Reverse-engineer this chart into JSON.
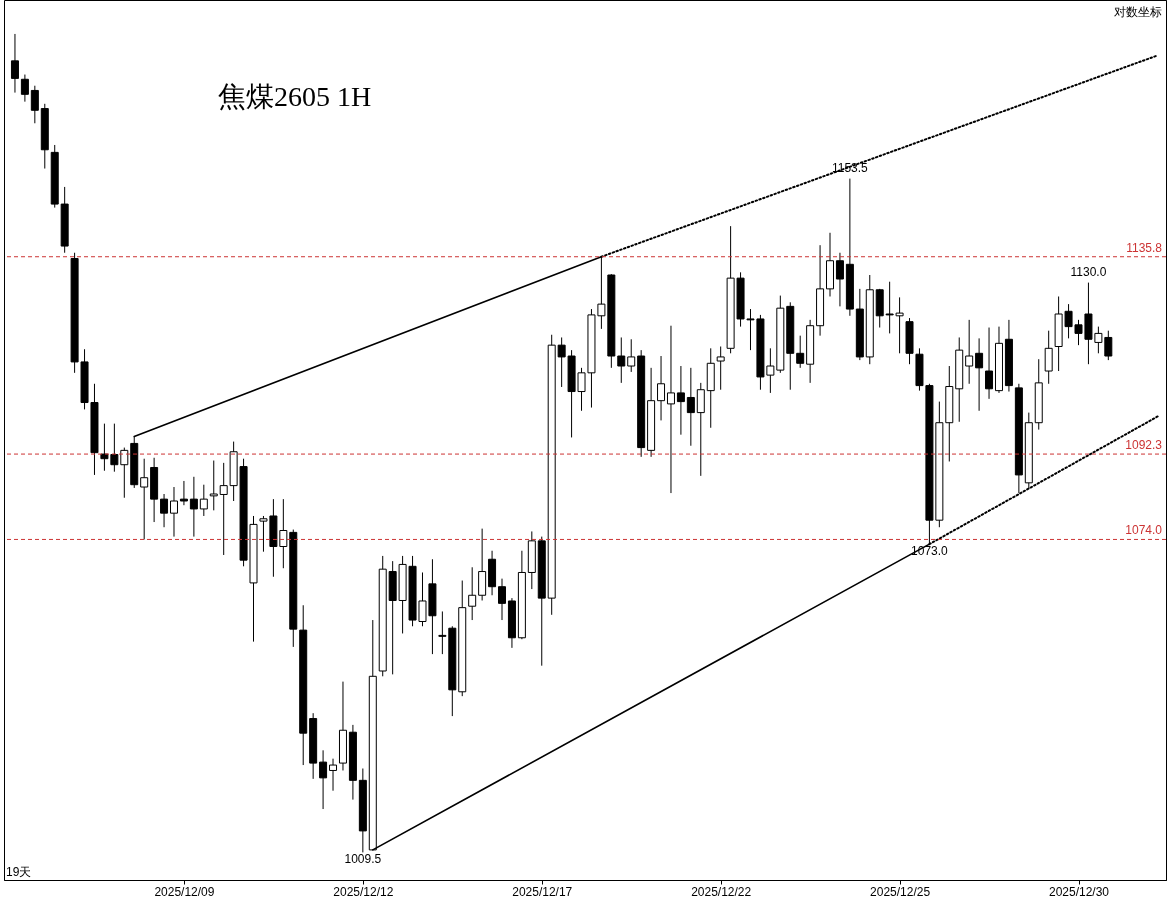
{
  "chart_data": {
    "type": "candlestick",
    "title": "焦煤2605 1H",
    "color": "#000000",
    "log": true,
    "grid": false,
    "tick_labels": "x",
    "ylim": [
      1004,
      1195
    ],
    "categories": [
      null,
      null,
      null,
      null,
      null,
      null,
      null,
      null,
      null,
      null,
      null,
      null,
      null,
      null,
      null,
      null,
      null,
      "2025/12/09",
      null,
      null,
      null,
      null,
      null,
      null,
      null,
      null,
      null,
      null,
      null,
      null,
      null,
      null,
      null,
      null,
      null,
      "2025/12/12",
      null,
      null,
      null,
      null,
      null,
      null,
      null,
      null,
      null,
      null,
      null,
      null,
      null,
      null,
      null,
      null,
      null,
      "2025/12/17",
      null,
      null,
      null,
      null,
      null,
      null,
      null,
      null,
      null,
      null,
      null,
      null,
      null,
      null,
      null,
      null,
      null,
      "2025/12/22",
      null,
      null,
      null,
      null,
      null,
      null,
      null,
      null,
      null,
      null,
      null,
      null,
      null,
      null,
      null,
      null,
      null,
      "2025/12/25",
      null,
      null,
      null,
      null,
      null,
      null,
      null,
      null,
      null,
      null,
      null,
      null,
      null,
      null,
      null,
      null,
      null,
      "2025/12/30",
      null,
      null,
      null,
      null,
      null,
      null,
      null,
      null
    ],
    "ohlc": [
      [
        1180.7,
        1187.0,
        1173.3,
        1176.6
      ],
      [
        1176.4,
        1177.5,
        1171.2,
        1172.9
      ],
      [
        1173.8,
        1174.9,
        1166.2,
        1169.2
      ],
      [
        1169.6,
        1170.7,
        1155.8,
        1160.1
      ],
      [
        1159.5,
        1161.2,
        1146.9,
        1147.7
      ],
      [
        1147.7,
        1151.6,
        1136.7,
        1138.2
      ],
      [
        1135.4,
        1136.7,
        1110.0,
        1112.4
      ],
      [
        1112.4,
        1115.2,
        1102.0,
        1103.5
      ],
      [
        1103.5,
        1107.6,
        1087.8,
        1092.6
      ],
      [
        1092.3,
        1098.9,
        1088.7,
        1091.3
      ],
      [
        1092.2,
        1098.9,
        1088.5,
        1090.0
      ],
      [
        1090.0,
        1093.7,
        1082.9,
        1093.1
      ],
      [
        1094.6,
        1096.1,
        1085.0,
        1085.7
      ],
      [
        1085.2,
        1091.3,
        1074.0,
        1087.2
      ],
      [
        1089.4,
        1091.5,
        1077.7,
        1082.6
      ],
      [
        1082.6,
        1083.7,
        1076.6,
        1079.6
      ],
      [
        1079.6,
        1085.2,
        1074.6,
        1082.2
      ],
      [
        1082.6,
        1086.5,
        1081.3,
        1082.2
      ],
      [
        1082.6,
        1087.4,
        1074.6,
        1080.5
      ],
      [
        1080.5,
        1085.7,
        1079.0,
        1082.6
      ],
      [
        1083.3,
        1090.9,
        1080.2,
        1083.7
      ],
      [
        1083.6,
        1090.4,
        1070.7,
        1085.5
      ],
      [
        1085.5,
        1095.0,
        1082.2,
        1092.8
      ],
      [
        1089.6,
        1091.3,
        1068.3,
        1069.6
      ],
      [
        1064.8,
        1079.0,
        1052.5,
        1077.2
      ],
      [
        1077.9,
        1079.0,
        1071.4,
        1078.4
      ],
      [
        1079.0,
        1082.6,
        1066.1,
        1072.5
      ],
      [
        1072.5,
        1082.6,
        1067.9,
        1075.9
      ],
      [
        1075.5,
        1076.1,
        1051.4,
        1055.1
      ],
      [
        1054.9,
        1060.1,
        1027.1,
        1033.6
      ],
      [
        1036.6,
        1037.7,
        1024.3,
        1027.5
      ],
      [
        1027.7,
        1030.1,
        1018.2,
        1024.5
      ],
      [
        1026.0,
        1028.4,
        1021.9,
        1027.1
      ],
      [
        1027.5,
        1044.2,
        1026.0,
        1034.2
      ],
      [
        1033.8,
        1035.3,
        1020.1,
        1024.0
      ],
      [
        1024.0,
        1026.4,
        1009.5,
        1013.8
      ],
      [
        1010.0,
        1057.0,
        1010.0,
        1045.3
      ],
      [
        1046.4,
        1070.5,
        1045.3,
        1067.7
      ],
      [
        1067.2,
        1069.4,
        1045.7,
        1061.1
      ],
      [
        1061.1,
        1070.5,
        1054.2,
        1068.7
      ],
      [
        1068.3,
        1070.5,
        1055.7,
        1057.0
      ],
      [
        1056.7,
        1067.0,
        1055.7,
        1061.0
      ],
      [
        1064.6,
        1069.8,
        1049.9,
        1057.9
      ],
      [
        1053.8,
        1058.8,
        1049.9,
        1053.6
      ],
      [
        1055.3,
        1055.7,
        1037.1,
        1042.5
      ],
      [
        1042.1,
        1065.3,
        1041.2,
        1059.6
      ],
      [
        1059.9,
        1068.1,
        1057.0,
        1062.2
      ],
      [
        1062.2,
        1076.3,
        1061.1,
        1067.2
      ],
      [
        1069.8,
        1071.6,
        1062.2,
        1064.0
      ],
      [
        1064.0,
        1065.7,
        1057.0,
        1060.5
      ],
      [
        1061.0,
        1061.6,
        1051.2,
        1053.3
      ],
      [
        1053.3,
        1071.6,
        1053.0,
        1067.0
      ],
      [
        1067.0,
        1075.7,
        1063.5,
        1073.7
      ],
      [
        1073.7,
        1074.6,
        1047.5,
        1061.6
      ],
      [
        1061.6,
        1118.4,
        1058.1,
        1116.1
      ],
      [
        1116.1,
        1117.8,
        1106.9,
        1113.5
      ],
      [
        1113.7,
        1115.0,
        1095.9,
        1105.9
      ],
      [
        1105.9,
        1111.1,
        1101.7,
        1110.0
      ],
      [
        1110.0,
        1124.1,
        1102.4,
        1122.8
      ],
      [
        1122.6,
        1135.8,
        1119.7,
        1125.2
      ],
      [
        1131.7,
        1131.9,
        1111.1,
        1113.7
      ],
      [
        1113.7,
        1117.8,
        1107.8,
        1111.5
      ],
      [
        1111.5,
        1117.4,
        1110.2,
        1113.5
      ],
      [
        1113.7,
        1115.0,
        1091.7,
        1093.7
      ],
      [
        1093.1,
        1111.1,
        1091.7,
        1103.9
      ],
      [
        1103.9,
        1113.7,
        1099.6,
        1107.6
      ],
      [
        1103.2,
        1120.4,
        1083.9,
        1105.6
      ],
      [
        1105.6,
        1111.5,
        1096.5,
        1103.7
      ],
      [
        1104.6,
        1111.1,
        1094.1,
        1101.3
      ],
      [
        1101.3,
        1107.8,
        1087.6,
        1106.3
      ],
      [
        1106.1,
        1115.4,
        1098.0,
        1112.1
      ],
      [
        1112.6,
        1115.8,
        1106.3,
        1113.5
      ],
      [
        1115.4,
        1142.7,
        1114.3,
        1131.0
      ],
      [
        1131.0,
        1132.3,
        1120.2,
        1121.9
      ],
      [
        1121.9,
        1124.1,
        1115.0,
        1121.7
      ],
      [
        1121.9,
        1122.8,
        1106.3,
        1109.1
      ],
      [
        1109.5,
        1115.4,
        1105.6,
        1111.5
      ],
      [
        1110.6,
        1127.1,
        1110.0,
        1124.3
      ],
      [
        1124.7,
        1125.6,
        1106.3,
        1114.3
      ],
      [
        1114.3,
        1118.2,
        1111.1,
        1112.1
      ],
      [
        1111.9,
        1121.7,
        1107.8,
        1120.4
      ],
      [
        1120.4,
        1138.4,
        1118.2,
        1128.6
      ],
      [
        1128.6,
        1141.2,
        1126.9,
        1134.9
      ],
      [
        1134.9,
        1136.7,
        1124.7,
        1130.8
      ],
      [
        1134.1,
        1153.5,
        1122.6,
        1124.1
      ],
      [
        1124.1,
        1128.6,
        1112.8,
        1113.5
      ],
      [
        1113.5,
        1131.7,
        1111.9,
        1128.4
      ],
      [
        1128.4,
        1128.6,
        1120.0,
        1122.6
      ],
      [
        1123.0,
        1130.2,
        1118.7,
        1122.8
      ],
      [
        1122.6,
        1126.7,
        1114.3,
        1123.2
      ],
      [
        1121.3,
        1122.1,
        1111.9,
        1114.3
      ],
      [
        1114.1,
        1115.4,
        1106.1,
        1107.2
      ],
      [
        1107.2,
        1107.6,
        1073.0,
        1078.1
      ],
      [
        1078.1,
        1103.7,
        1076.6,
        1099.1
      ],
      [
        1099.1,
        1111.5,
        1090.7,
        1107.0
      ],
      [
        1106.5,
        1117.8,
        1099.3,
        1115.0
      ],
      [
        1111.5,
        1121.7,
        1107.6,
        1113.7
      ],
      [
        1114.3,
        1117.6,
        1101.7,
        1111.1
      ],
      [
        1110.4,
        1120.0,
        1104.3,
        1106.5
      ],
      [
        1106.1,
        1120.2,
        1105.6,
        1116.5
      ],
      [
        1117.4,
        1121.7,
        1105.9,
        1107.2
      ],
      [
        1106.7,
        1107.6,
        1083.9,
        1087.8
      ],
      [
        1086.1,
        1101.3,
        1084.8,
        1099.1
      ],
      [
        1099.1,
        1113.0,
        1097.6,
        1107.8
      ],
      [
        1110.4,
        1119.3,
        1107.6,
        1115.4
      ],
      [
        1115.8,
        1126.9,
        1110.4,
        1123.0
      ],
      [
        1123.6,
        1125.2,
        1117.6,
        1120.2
      ],
      [
        1120.6,
        1121.7,
        1116.1,
        1118.7
      ],
      [
        1123.0,
        1130.0,
        1111.9,
        1117.4
      ],
      [
        1116.7,
        1120.2,
        1114.3,
        1118.7
      ],
      [
        1117.8,
        1119.3,
        1112.8,
        1113.7
      ],
      null,
      null,
      null,
      null,
      null
    ],
    "series": [
      {
        "type": "line",
        "color": "#000000",
        "line_style": "solid",
        "values": [
          null,
          null,
          null,
          null,
          null,
          null,
          null,
          null,
          null,
          null,
          null,
          null,
          1096.1,
          null,
          null,
          null,
          null,
          null,
          null,
          null,
          null,
          null,
          null,
          null,
          null,
          null,
          null,
          null,
          null,
          null,
          null,
          null,
          null,
          null,
          null,
          null,
          null,
          null,
          null,
          null,
          null,
          null,
          null,
          null,
          null,
          null,
          null,
          null,
          null,
          null,
          null,
          null,
          null,
          null,
          null,
          null,
          null,
          null,
          null,
          1135.8,
          null,
          null,
          null,
          null,
          null,
          null,
          null,
          null,
          null,
          null,
          null,
          null,
          null,
          null,
          null,
          null,
          null,
          null,
          null,
          null,
          null,
          null,
          null,
          null,
          null,
          null,
          null,
          null,
          null,
          null,
          null,
          null,
          null,
          null,
          null,
          null,
          null,
          null,
          null,
          null,
          null,
          null,
          null,
          null,
          null,
          null,
          null,
          null,
          null,
          null,
          null,
          null,
          null,
          null,
          null,
          null
        ]
      },
      {
        "type": "line",
        "color": "#000000",
        "line_style": "dotted",
        "values": [
          null,
          null,
          null,
          null,
          null,
          null,
          null,
          null,
          null,
          null,
          null,
          null,
          null,
          null,
          null,
          null,
          null,
          null,
          null,
          null,
          null,
          null,
          null,
          null,
          null,
          null,
          null,
          null,
          null,
          null,
          null,
          null,
          null,
          null,
          null,
          null,
          null,
          null,
          null,
          null,
          null,
          null,
          null,
          null,
          null,
          null,
          null,
          null,
          null,
          null,
          null,
          null,
          null,
          null,
          null,
          null,
          null,
          null,
          null,
          1135.8,
          null,
          null,
          null,
          null,
          null,
          null,
          null,
          null,
          null,
          null,
          null,
          null,
          null,
          null,
          null,
          null,
          null,
          null,
          null,
          null,
          null,
          null,
          null,
          null,
          null,
          null,
          null,
          null,
          null,
          null,
          null,
          null,
          null,
          null,
          null,
          null,
          null,
          null,
          null,
          null,
          null,
          null,
          null,
          null,
          null,
          null,
          null,
          null,
          null,
          null,
          null,
          null,
          null,
          null,
          null,
          1182.0
        ]
      },
      {
        "type": "line",
        "color": "#000000",
        "line_style": "solid",
        "values": [
          null,
          null,
          null,
          null,
          null,
          null,
          null,
          null,
          null,
          null,
          null,
          null,
          null,
          null,
          null,
          null,
          null,
          null,
          null,
          null,
          null,
          null,
          null,
          null,
          null,
          null,
          null,
          null,
          null,
          null,
          null,
          null,
          null,
          null,
          null,
          null,
          1010.0,
          null,
          null,
          null,
          null,
          null,
          null,
          null,
          null,
          null,
          null,
          null,
          null,
          null,
          null,
          null,
          null,
          null,
          null,
          null,
          null,
          null,
          null,
          null,
          null,
          null,
          null,
          null,
          null,
          null,
          null,
          null,
          null,
          null,
          null,
          null,
          null,
          null,
          null,
          null,
          null,
          null,
          null,
          null,
          null,
          null,
          null,
          null,
          null,
          null,
          null,
          null,
          null,
          null,
          null,
          null,
          1073.0,
          null,
          null,
          null,
          null,
          null,
          null,
          null,
          null,
          null,
          null,
          null,
          null,
          null,
          null,
          null,
          null,
          null,
          null,
          null,
          null,
          null,
          null,
          null
        ]
      },
      {
        "type": "line",
        "color": "#000000",
        "line_style": "dotted",
        "values": [
          null,
          null,
          null,
          null,
          null,
          null,
          null,
          null,
          null,
          null,
          null,
          null,
          null,
          null,
          null,
          null,
          null,
          null,
          null,
          null,
          null,
          null,
          null,
          null,
          null,
          null,
          null,
          null,
          null,
          null,
          null,
          null,
          null,
          null,
          null,
          null,
          null,
          null,
          null,
          null,
          null,
          null,
          null,
          null,
          null,
          null,
          null,
          null,
          null,
          null,
          null,
          null,
          null,
          null,
          null,
          null,
          null,
          null,
          null,
          null,
          null,
          null,
          null,
          null,
          null,
          null,
          null,
          null,
          null,
          null,
          null,
          null,
          null,
          null,
          null,
          null,
          null,
          null,
          null,
          null,
          null,
          null,
          null,
          null,
          null,
          null,
          null,
          null,
          null,
          null,
          null,
          null,
          1073.0,
          null,
          null,
          null,
          null,
          null,
          null,
          null,
          null,
          null,
          null,
          null,
          null,
          null,
          null,
          null,
          null,
          null,
          null,
          null,
          null,
          null,
          null,
          1100.5
        ]
      }
    ],
    "ref_lines": [
      {
        "axis": "y",
        "value": 1135.8,
        "label": "1135.8",
        "color": "#cc3333",
        "line_style": "dashed"
      },
      {
        "axis": "y",
        "value": 1092.3,
        "label": "1092.3",
        "color": "#cc3333",
        "line_style": "dashed"
      },
      {
        "axis": "y",
        "value": 1074.0,
        "label": "1074.0",
        "color": "#cc3333",
        "line_style": "dashed"
      }
    ],
    "annotations": [
      {
        "text": "1153.5",
        "y": 1153.5
      },
      {
        "text": "1130.0",
        "y": 1130.0
      },
      {
        "text": "1009.5",
        "y": 1009.5
      },
      {
        "text": "1073.0",
        "y": 1073.0
      },
      "对数坐标",
      "19天"
    ]
  }
}
